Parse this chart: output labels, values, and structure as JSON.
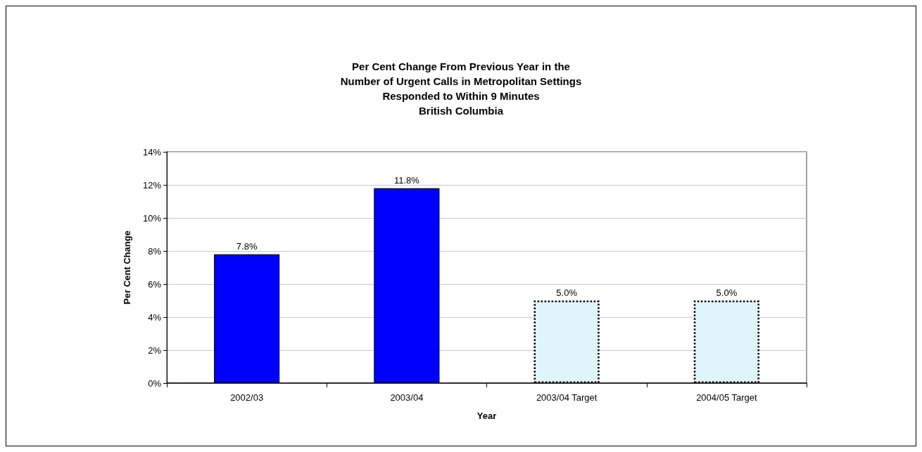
{
  "chart_data": {
    "type": "bar",
    "title": "Per Cent Change From Previous Year in the\nNumber of Urgent Calls in Metropolitan Settings\nResponded to Within 9 Minutes\nBritish Columbia",
    "xlabel": "Year",
    "ylabel": "Per Cent Change",
    "categories": [
      "2002/03",
      "2003/04",
      "2003/04 Target",
      "2004/05 Target"
    ],
    "series": [
      {
        "color": "#0000ff",
        "line_style": "solid",
        "values": [
          7.8,
          11.8,
          null,
          null
        ],
        "value_labels": [
          "7.8%",
          "11.8%",
          null,
          null
        ]
      },
      {
        "color": "#e0f4fc",
        "line_style": "dotted",
        "values": [
          null,
          null,
          5.0,
          5.0
        ],
        "value_labels": [
          null,
          null,
          "5.0%",
          "5.0%"
        ]
      }
    ],
    "ylim": [
      0,
      14
    ],
    "yticks": [
      {
        "value": 0,
        "label": "0%"
      },
      {
        "value": 2,
        "label": "2%"
      },
      {
        "value": 4,
        "label": "4%"
      },
      {
        "value": 6,
        "label": "6%"
      },
      {
        "value": 8,
        "label": "8%"
      },
      {
        "value": 10,
        "label": "10%"
      },
      {
        "value": 12,
        "label": "12%"
      },
      {
        "value": 14,
        "label": "14%"
      }
    ],
    "grid": "y"
  }
}
